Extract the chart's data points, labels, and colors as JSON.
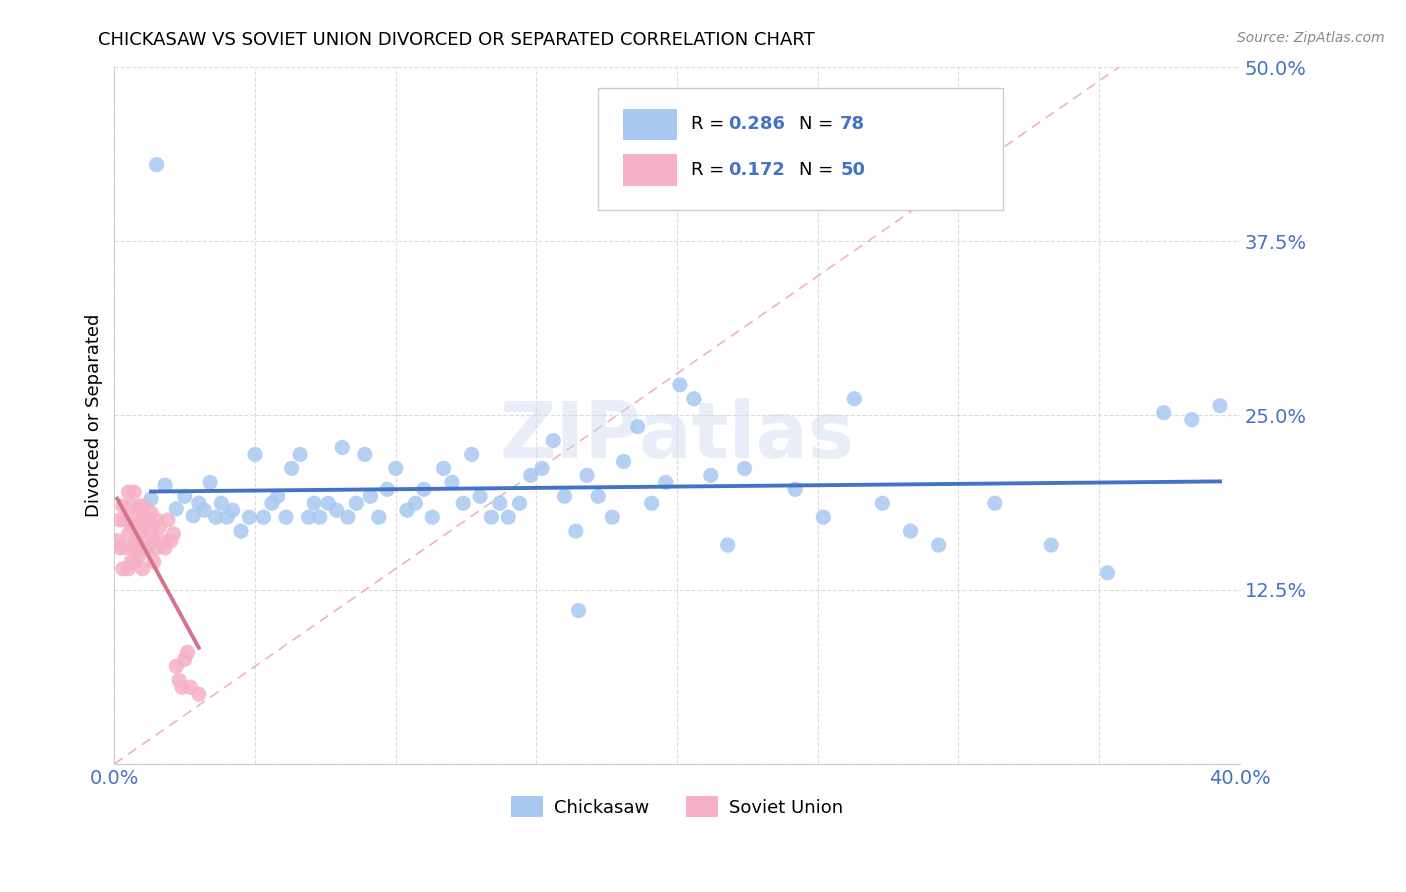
{
  "title": "CHICKASAW VS SOVIET UNION DIVORCED OR SEPARATED CORRELATION CHART",
  "source": "Source: ZipAtlas.com",
  "ylabel": "Divorced or Separated",
  "xmin": 0.0,
  "xmax": 0.4,
  "ymin": 0.0,
  "ymax": 0.5,
  "chickasaw_color": "#a8c8f0",
  "soviet_color": "#f5b0c5",
  "chickasaw_line_color": "#4472c4",
  "soviet_line_color": "#d4748a",
  "diagonal_color": "#e0a0b0",
  "chickasaw_R": 0.286,
  "chickasaw_N": 78,
  "soviet_R": 0.172,
  "soviet_N": 50,
  "background_color": "#ffffff",
  "grid_color": "#cccccc",
  "watermark": "ZIPatlas",
  "chickasaw_x": [
    0.013,
    0.018,
    0.022,
    0.025,
    0.028,
    0.03,
    0.032,
    0.034,
    0.036,
    0.038,
    0.04,
    0.042,
    0.045,
    0.048,
    0.05,
    0.053,
    0.056,
    0.058,
    0.061,
    0.063,
    0.066,
    0.069,
    0.071,
    0.073,
    0.076,
    0.079,
    0.081,
    0.083,
    0.086,
    0.089,
    0.091,
    0.094,
    0.097,
    0.1,
    0.104,
    0.107,
    0.11,
    0.113,
    0.117,
    0.12,
    0.124,
    0.127,
    0.13,
    0.134,
    0.137,
    0.14,
    0.144,
    0.148,
    0.152,
    0.156,
    0.16,
    0.164,
    0.168,
    0.172,
    0.177,
    0.181,
    0.186,
    0.191,
    0.196,
    0.201,
    0.206,
    0.212,
    0.218,
    0.224,
    0.242,
    0.252,
    0.263,
    0.273,
    0.283,
    0.293,
    0.313,
    0.333,
    0.353,
    0.373,
    0.383,
    0.393,
    0.015,
    0.165
  ],
  "chickasaw_y": [
    0.19,
    0.2,
    0.183,
    0.192,
    0.178,
    0.187,
    0.182,
    0.202,
    0.177,
    0.187,
    0.177,
    0.182,
    0.167,
    0.177,
    0.222,
    0.177,
    0.187,
    0.192,
    0.177,
    0.212,
    0.222,
    0.177,
    0.187,
    0.177,
    0.187,
    0.182,
    0.227,
    0.177,
    0.187,
    0.222,
    0.192,
    0.177,
    0.197,
    0.212,
    0.182,
    0.187,
    0.197,
    0.177,
    0.212,
    0.202,
    0.187,
    0.222,
    0.192,
    0.177,
    0.187,
    0.177,
    0.187,
    0.207,
    0.212,
    0.232,
    0.192,
    0.167,
    0.207,
    0.192,
    0.177,
    0.217,
    0.242,
    0.187,
    0.202,
    0.272,
    0.262,
    0.207,
    0.157,
    0.212,
    0.197,
    0.177,
    0.262,
    0.187,
    0.167,
    0.157,
    0.187,
    0.157,
    0.137,
    0.252,
    0.247,
    0.257,
    0.43,
    0.11
  ],
  "soviet_x": [
    0.001,
    0.002,
    0.002,
    0.003,
    0.003,
    0.004,
    0.004,
    0.005,
    0.005,
    0.005,
    0.006,
    0.006,
    0.006,
    0.007,
    0.007,
    0.007,
    0.007,
    0.008,
    0.008,
    0.008,
    0.009,
    0.009,
    0.009,
    0.01,
    0.01,
    0.01,
    0.01,
    0.011,
    0.011,
    0.012,
    0.012,
    0.013,
    0.013,
    0.014,
    0.014,
    0.015,
    0.015,
    0.016,
    0.017,
    0.018,
    0.019,
    0.02,
    0.021,
    0.022,
    0.023,
    0.024,
    0.025,
    0.026,
    0.027,
    0.03
  ],
  "soviet_y": [
    0.16,
    0.175,
    0.155,
    0.185,
    0.14,
    0.155,
    0.175,
    0.165,
    0.14,
    0.195,
    0.145,
    0.17,
    0.185,
    0.155,
    0.17,
    0.195,
    0.145,
    0.16,
    0.18,
    0.155,
    0.165,
    0.185,
    0.15,
    0.175,
    0.155,
    0.185,
    0.14,
    0.17,
    0.155,
    0.175,
    0.155,
    0.165,
    0.18,
    0.145,
    0.16,
    0.175,
    0.155,
    0.17,
    0.16,
    0.155,
    0.175,
    0.16,
    0.165,
    0.07,
    0.06,
    0.055,
    0.075,
    0.08,
    0.055,
    0.05
  ]
}
